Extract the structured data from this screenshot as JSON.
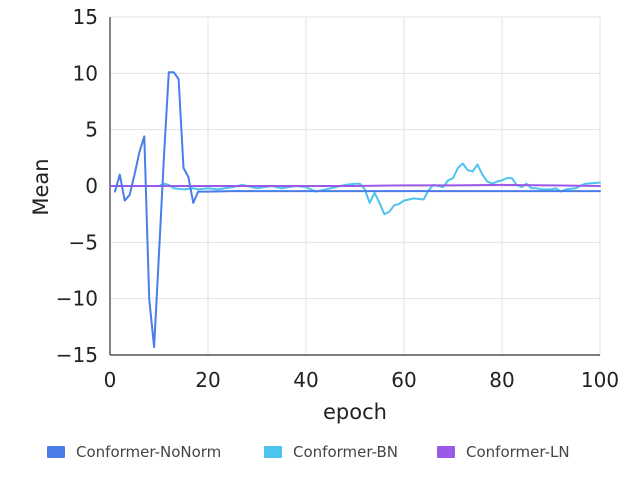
{
  "chart_data": {
    "type": "line",
    "xlabel": "epoch",
    "ylabel": "Mean",
    "xlim": [
      0,
      100
    ],
    "ylim": [
      -15,
      15
    ],
    "xticks": [
      0,
      20,
      40,
      60,
      80,
      100
    ],
    "yticks": [
      15,
      10,
      5,
      0,
      -5,
      -10,
      -15
    ],
    "grid": true,
    "legend_position": "bottom",
    "series": [
      {
        "name": "Conformer-NoNorm",
        "color": "#4a7de8",
        "x": [
          1,
          2,
          3,
          4,
          5,
          6,
          7,
          8,
          9,
          10,
          11,
          12,
          13,
          14,
          15,
          16,
          17,
          18,
          20,
          25,
          30,
          35,
          40,
          45,
          50,
          55,
          60,
          65,
          70,
          75,
          80,
          85,
          90,
          95,
          100
        ],
        "y": [
          -0.5,
          1.0,
          -1.3,
          -0.8,
          1.0,
          3.0,
          4.4,
          -10.0,
          -14.3,
          -6.0,
          2.5,
          10.1,
          10.1,
          9.5,
          1.6,
          0.8,
          -1.5,
          -0.5,
          -0.5,
          -0.45,
          -0.45,
          -0.45,
          -0.45,
          -0.45,
          -0.45,
          -0.45,
          -0.45,
          -0.45,
          -0.45,
          -0.45,
          -0.45,
          -0.45,
          -0.45,
          -0.45,
          -0.45
        ]
      },
      {
        "name": "Conformer-BN",
        "color": "#4dc3f0",
        "x": [
          1,
          5,
          10,
          11,
          12,
          13,
          15,
          17,
          18,
          20,
          22,
          25,
          27,
          30,
          33,
          35,
          38,
          40,
          42,
          45,
          48,
          50,
          51,
          52,
          53,
          54,
          55,
          56,
          57,
          58,
          59,
          60,
          62,
          64,
          65,
          66,
          67,
          68,
          69,
          70,
          71,
          72,
          73,
          74,
          75,
          76,
          77,
          78,
          79,
          80,
          81,
          82,
          83,
          84,
          85,
          86,
          87,
          88,
          90,
          91,
          92,
          93,
          95,
          97,
          100
        ],
        "y": [
          0.0,
          0.0,
          0.0,
          0.2,
          0.1,
          -0.2,
          -0.3,
          -0.2,
          -0.3,
          -0.2,
          -0.3,
          -0.1,
          0.1,
          -0.2,
          0.0,
          -0.2,
          0.0,
          -0.1,
          -0.5,
          -0.2,
          0.1,
          0.2,
          0.2,
          -0.3,
          -1.5,
          -0.6,
          -1.5,
          -2.5,
          -2.3,
          -1.7,
          -1.6,
          -1.3,
          -1.1,
          -1.2,
          -0.4,
          0.1,
          0.0,
          -0.1,
          0.5,
          0.7,
          1.6,
          2.0,
          1.4,
          1.3,
          1.9,
          1.0,
          0.4,
          0.2,
          0.4,
          0.5,
          0.7,
          0.7,
          0.1,
          -0.1,
          0.2,
          -0.2,
          -0.2,
          -0.3,
          -0.3,
          -0.2,
          -0.5,
          -0.3,
          -0.2,
          0.2,
          0.3
        ]
      },
      {
        "name": "Conformer-LN",
        "color": "#9b59e8",
        "x": [
          0,
          10,
          20,
          30,
          40,
          50,
          60,
          70,
          80,
          90,
          100
        ],
        "y": [
          0.0,
          0.0,
          0.0,
          0.0,
          0.0,
          0.0,
          0.05,
          0.05,
          0.1,
          0.05,
          0.0
        ]
      }
    ]
  }
}
